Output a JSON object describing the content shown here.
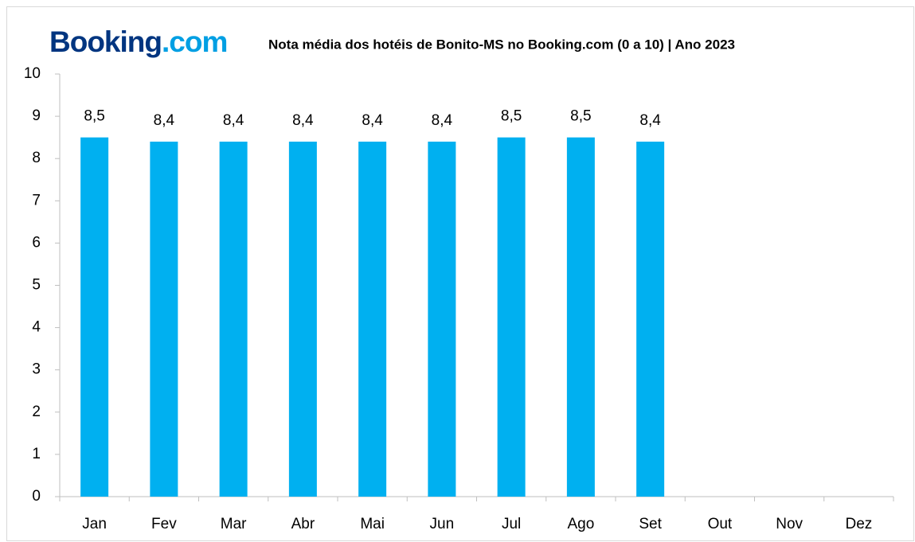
{
  "chart_data": {
    "type": "bar",
    "logo": {
      "name": "Booking",
      "suffix": ".com"
    },
    "title": "Nota média dos hotéis de Bonito-MS no Booking.com (0 a 10) | Ano 2023",
    "categories": [
      "Jan",
      "Fev",
      "Mar",
      "Abr",
      "Mai",
      "Jun",
      "Jul",
      "Ago",
      "Set",
      "Out",
      "Nov",
      "Dez"
    ],
    "values": [
      8.5,
      8.4,
      8.4,
      8.4,
      8.4,
      8.4,
      8.5,
      8.5,
      8.4,
      null,
      null,
      null
    ],
    "value_labels": [
      "8,5",
      "8,4",
      "8,4",
      "8,4",
      "8,4",
      "8,4",
      "8,5",
      "8,5",
      "8,4",
      null,
      null,
      null
    ],
    "color": "#00b0f0",
    "ylim": [
      0,
      10
    ],
    "yticks": [
      0,
      1,
      2,
      3,
      4,
      5,
      6,
      7,
      8,
      9,
      10
    ],
    "grid": false
  }
}
